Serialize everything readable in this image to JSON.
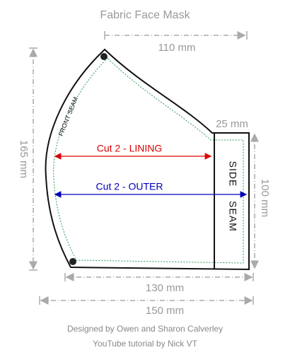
{
  "title": "Fabric Face Mask",
  "dimensions": {
    "top_width": "110 mm",
    "height": "165 mm",
    "tab_width": "25 mm",
    "side_height": "100 mm",
    "bottom_width": "130 mm",
    "total_width": "150 mm"
  },
  "labels": {
    "front_seam": "FRONT SEAM",
    "side": "SIDE",
    "seam": "SEAM",
    "lining": "Cut 2 - LINING",
    "outer": "Cut 2 - OUTER"
  },
  "credits": [
    "Designed by Owen and Sharon Calverley",
    "YouTube tutorial by Nick VT"
  ]
}
